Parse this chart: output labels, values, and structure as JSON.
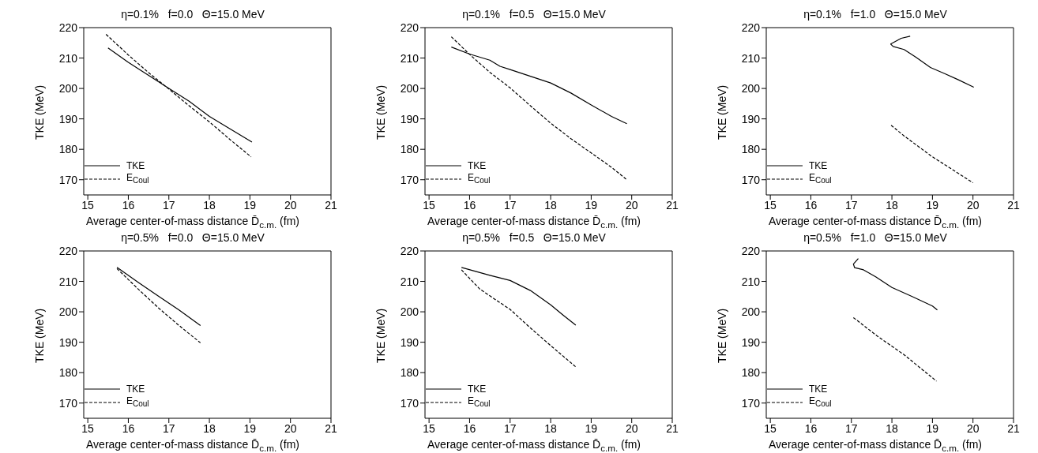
{
  "chart_data": [
    {
      "type": "line",
      "title": "η=0.1%   f=0.0   Θ=15.0 MeV",
      "xlabel": "Average center-of-mass distance D̄$_{c.m.}$ (fm)",
      "ylabel": "TKE (MeV)",
      "xlim": [
        14.9,
        21
      ],
      "xticks": [
        15,
        16,
        17,
        18,
        19,
        20,
        21
      ],
      "ylim": [
        165,
        220
      ],
      "yticks": [
        170,
        180,
        190,
        200,
        210,
        220
      ],
      "legend": "bottom left",
      "grid": false,
      "marker": "none",
      "series": [
        {
          "name": "TKE",
          "color": "#000000",
          "line_style": "solid",
          "x": [
            15.5,
            16,
            16.5,
            17,
            17.5,
            18,
            18.5,
            19.05
          ],
          "values": [
            213.3,
            208.6,
            204.3,
            200.0,
            195.8,
            190.8,
            186.8,
            182.4
          ]
        },
        {
          "name": "E$_{Coul}$",
          "color": "#000000",
          "line_style": "dashed",
          "x": [
            15.45,
            16,
            16.5,
            17,
            17.5,
            18,
            18.5,
            19.03
          ],
          "values": [
            217.8,
            211.0,
            205.2,
            199.8,
            194.3,
            189.0,
            183.3,
            177.5
          ]
        }
      ]
    },
    {
      "type": "line",
      "title": "η=0.1%   f=0.5   Θ=15.0 MeV",
      "xlabel": "Average center-of-mass distance D̄$_{c.m.}$ (fm)",
      "ylabel": "TKE (MeV)",
      "xlim": [
        14.9,
        21
      ],
      "xticks": [
        15,
        16,
        17,
        18,
        19,
        20,
        21
      ],
      "ylim": [
        165,
        220
      ],
      "yticks": [
        170,
        180,
        190,
        200,
        210,
        220
      ],
      "legend": "bottom left",
      "grid": false,
      "marker": "none",
      "series": [
        {
          "name": "TKE",
          "color": "#000000",
          "line_style": "solid",
          "x": [
            15.55,
            16,
            16.5,
            16.75,
            17,
            17.5,
            18,
            18.5,
            19,
            19.5,
            19.88
          ],
          "values": [
            213.6,
            211.3,
            209.3,
            207.3,
            206.2,
            204.0,
            201.8,
            198.5,
            194.6,
            190.8,
            188.4
          ]
        },
        {
          "name": "E$_{Coul}$",
          "color": "#000000",
          "line_style": "dashed",
          "x": [
            15.55,
            16,
            16.5,
            17,
            17.5,
            18,
            18.5,
            19,
            19.5,
            19.86
          ],
          "values": [
            217.0,
            211.2,
            205.3,
            200.2,
            194.3,
            188.6,
            183.5,
            178.8,
            174.1,
            170.2
          ]
        }
      ]
    },
    {
      "type": "line",
      "title": "η=0.1%   f=1.0   Θ=15.0 MeV",
      "xlabel": "Average center-of-mass distance D̄$_{c.m.}$ (fm)",
      "ylabel": "TKE (MeV)",
      "xlim": [
        14.9,
        21
      ],
      "xticks": [
        15,
        16,
        17,
        18,
        19,
        20,
        21
      ],
      "ylim": [
        165,
        220
      ],
      "yticks": [
        170,
        180,
        190,
        200,
        210,
        220
      ],
      "legend": "bottom left",
      "grid": false,
      "marker": "none",
      "series": [
        {
          "name": "TKE",
          "color": "#000000",
          "line_style": "solid",
          "x": [
            18.45,
            18.23,
            17.97,
            18.03,
            18.3,
            18.6,
            18.95,
            19.3,
            19.63,
            20.02
          ],
          "values": [
            217.2,
            216.5,
            214.6,
            213.8,
            212.8,
            210.2,
            206.9,
            204.9,
            202.9,
            200.4
          ]
        },
        {
          "name": "E$_{Coul}$",
          "color": "#000000",
          "line_style": "dashed",
          "x": [
            17.98,
            18.3,
            18.97,
            20.0
          ],
          "values": [
            187.9,
            184.4,
            177.8,
            169.0
          ]
        }
      ]
    },
    {
      "type": "line",
      "title": "η=0.5%   f=0.0   Θ=15.0 MeV",
      "xlabel": "Average center-of-mass distance D̄$_{c.m.}$ (fm)",
      "ylabel": "TKE (MeV)",
      "xlim": [
        14.9,
        21
      ],
      "xticks": [
        15,
        16,
        17,
        18,
        19,
        20,
        21
      ],
      "ylim": [
        165,
        220
      ],
      "yticks": [
        170,
        180,
        190,
        200,
        210,
        220
      ],
      "legend": "bottom left",
      "grid": false,
      "marker": "none",
      "series": [
        {
          "name": "TKE",
          "color": "#000000",
          "line_style": "solid",
          "x": [
            15.72,
            16.25,
            16.75,
            17.25,
            17.78
          ],
          "values": [
            214.6,
            209.6,
            205.1,
            200.6,
            195.5
          ]
        },
        {
          "name": "E$_{Coul}$",
          "color": "#000000",
          "line_style": "dashed",
          "x": [
            15.72,
            16.25,
            16.75,
            17.25,
            17.78
          ],
          "values": [
            214.2,
            207.4,
            201.2,
            195.5,
            189.8
          ]
        }
      ]
    },
    {
      "type": "line",
      "title": "η=0.5%   f=0.5   Θ=15.0 MeV",
      "xlabel": "Average center-of-mass distance D̄$_{c.m.}$ (fm)",
      "ylabel": "TKE (MeV)",
      "xlim": [
        14.9,
        21
      ],
      "xticks": [
        15,
        16,
        17,
        18,
        19,
        20,
        21
      ],
      "ylim": [
        165,
        220
      ],
      "yticks": [
        170,
        180,
        190,
        200,
        210,
        220
      ],
      "legend": "bottom left",
      "grid": false,
      "marker": "none",
      "series": [
        {
          "name": "TKE",
          "color": "#000000",
          "line_style": "solid",
          "x": [
            15.8,
            16.5,
            17,
            17.5,
            18,
            18.3,
            18.62
          ],
          "values": [
            214.6,
            212.0,
            210.3,
            207.0,
            202.3,
            199.0,
            195.6
          ]
        },
        {
          "name": "E$_{Coul}$",
          "color": "#000000",
          "line_style": "dashed",
          "x": [
            15.8,
            16.25,
            16.75,
            17,
            17.5,
            18,
            18.62
          ],
          "values": [
            213.8,
            207.5,
            203.0,
            200.8,
            194.7,
            188.9,
            181.9
          ]
        }
      ]
    },
    {
      "type": "line",
      "title": "η=0.5%   f=1.0   Θ=15.0 MeV",
      "xlabel": "Average center-of-mass distance D̄$_{c.m.}$ (fm)",
      "ylabel": "TKE (MeV)",
      "xlim": [
        14.9,
        21
      ],
      "xticks": [
        15,
        16,
        17,
        18,
        19,
        20,
        21
      ],
      "ylim": [
        165,
        220
      ],
      "yticks": [
        170,
        180,
        190,
        200,
        210,
        220
      ],
      "legend": "bottom left",
      "grid": false,
      "marker": "none",
      "series": [
        {
          "name": "TKE",
          "color": "#000000",
          "line_style": "solid",
          "x": [
            17.17,
            17.05,
            17.08,
            17.3,
            17.6,
            18,
            18.5,
            19.0,
            19.12
          ],
          "values": [
            217.5,
            215.7,
            214.5,
            213.8,
            211.5,
            208.0,
            205.0,
            201.9,
            200.6
          ]
        },
        {
          "name": "E$_{Coul}$",
          "color": "#000000",
          "line_style": "dashed",
          "x": [
            17.05,
            17.63,
            18.3,
            19.1
          ],
          "values": [
            198.1,
            192.1,
            185.9,
            177.2
          ]
        }
      ]
    }
  ]
}
